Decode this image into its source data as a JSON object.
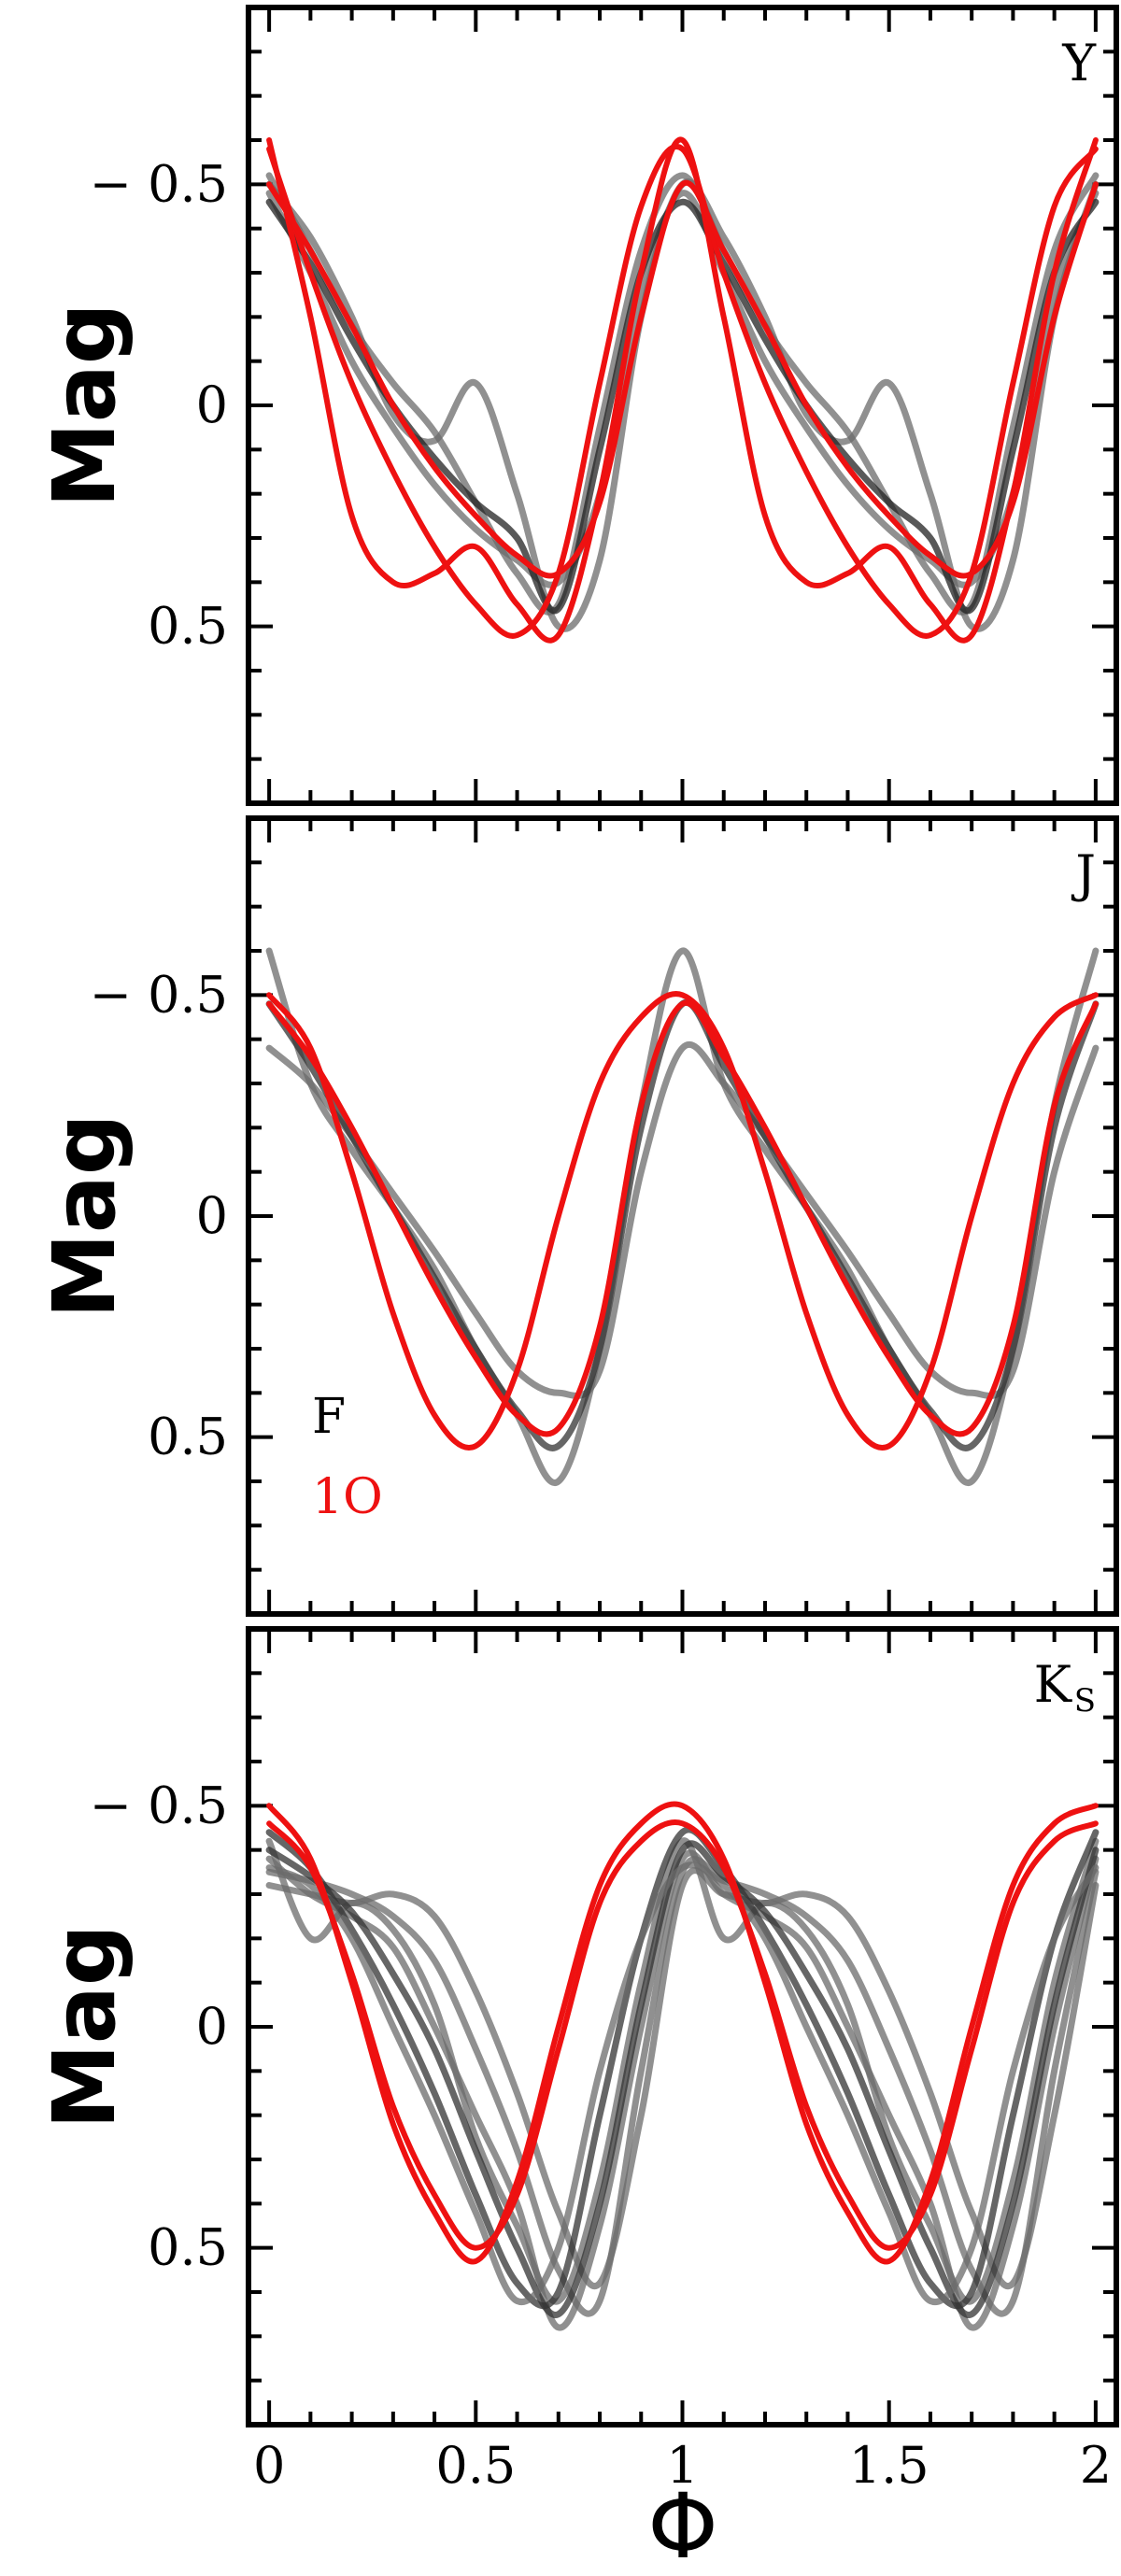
{
  "chart_data": [
    {
      "type": "line",
      "band_label": "Y",
      "ylabel": "Mag",
      "xlabel": "",
      "xlim": [
        -0.05,
        2.05
      ],
      "ylim": [
        0.9,
        -0.9
      ],
      "y_inverted": true,
      "yticks": [
        -0.5,
        0,
        0.5
      ],
      "ytick_labels": [
        "− 0.5",
        "0",
        "0.5"
      ],
      "xtick_labels": [],
      "grid": false,
      "series": [
        {
          "color": "#6b6b6b",
          "x": [
            0,
            0.1,
            0.2,
            0.3,
            0.4,
            0.5,
            0.6,
            0.7,
            0.8,
            0.9,
            1.0
          ],
          "y": [
            -0.52,
            -0.35,
            -0.18,
            -0.05,
            0.06,
            0.22,
            0.38,
            0.45,
            0.05,
            -0.35,
            -0.52
          ]
        },
        {
          "color": "#6b6b6b",
          "x": [
            0,
            0.1,
            0.2,
            0.3,
            0.4,
            0.5,
            0.6,
            0.7,
            0.8,
            0.9,
            1.0
          ],
          "y": [
            -0.5,
            -0.38,
            -0.2,
            0.02,
            0.08,
            -0.05,
            0.2,
            0.5,
            0.35,
            -0.2,
            -0.5
          ]
        },
        {
          "color": "#6b6b6b",
          "x": [
            0,
            0.1,
            0.2,
            0.3,
            0.4,
            0.5,
            0.6,
            0.7,
            0.8,
            0.9,
            1.0
          ],
          "y": [
            -0.48,
            -0.3,
            -0.1,
            0.05,
            0.18,
            0.28,
            0.35,
            0.4,
            0.2,
            -0.25,
            -0.48
          ]
        },
        {
          "color": "#222222",
          "x": [
            0,
            0.1,
            0.2,
            0.3,
            0.4,
            0.5,
            0.6,
            0.7,
            0.8,
            0.9,
            1.0
          ],
          "y": [
            -0.46,
            -0.32,
            -0.15,
            0.0,
            0.12,
            0.22,
            0.3,
            0.46,
            0.1,
            -0.3,
            -0.46
          ]
        },
        {
          "color": "#ee1111",
          "x": [
            0,
            0.1,
            0.2,
            0.3,
            0.4,
            0.5,
            0.6,
            0.7,
            0.8,
            0.9,
            1.0
          ],
          "y": [
            -0.6,
            -0.2,
            0.25,
            0.4,
            0.38,
            0.32,
            0.45,
            0.52,
            0.2,
            -0.3,
            -0.6
          ]
        },
        {
          "color": "#ee1111",
          "x": [
            0,
            0.1,
            0.2,
            0.3,
            0.4,
            0.5,
            0.6,
            0.7,
            0.8,
            0.9,
            1.0
          ],
          "y": [
            -0.58,
            -0.3,
            -0.05,
            0.15,
            0.32,
            0.45,
            0.52,
            0.38,
            -0.05,
            -0.45,
            -0.58
          ]
        },
        {
          "color": "#ee1111",
          "x": [
            0,
            0.1,
            0.2,
            0.3,
            0.4,
            0.5,
            0.6,
            0.7,
            0.8,
            0.9,
            1.0
          ],
          "y": [
            -0.5,
            -0.35,
            -0.18,
            0.0,
            0.14,
            0.25,
            0.34,
            0.38,
            0.22,
            -0.2,
            -0.5
          ]
        }
      ]
    },
    {
      "type": "line",
      "band_label": "J",
      "ylabel": "Mag",
      "xlabel": "",
      "xlim": [
        -0.05,
        2.05
      ],
      "ylim": [
        0.9,
        -0.9
      ],
      "y_inverted": true,
      "yticks": [
        -0.5,
        0,
        0.5
      ],
      "ytick_labels": [
        "− 0.5",
        "0",
        "0.5"
      ],
      "xtick_labels": [],
      "grid": false,
      "legend": [
        {
          "label": "F",
          "color": "#000000"
        },
        {
          "label": "1O",
          "color": "#ee1111"
        }
      ],
      "legend_position": "lower-left",
      "series": [
        {
          "color": "#6b6b6b",
          "x": [
            0,
            0.1,
            0.2,
            0.3,
            0.4,
            0.5,
            0.6,
            0.7,
            0.8,
            0.9,
            1.0
          ],
          "y": [
            -0.6,
            -0.3,
            -0.15,
            -0.02,
            0.12,
            0.3,
            0.45,
            0.6,
            0.3,
            -0.25,
            -0.6
          ]
        },
        {
          "color": "#6b6b6b",
          "x": [
            0,
            0.1,
            0.2,
            0.3,
            0.4,
            0.5,
            0.6,
            0.7,
            0.8,
            0.9,
            1.0
          ],
          "y": [
            -0.38,
            -0.3,
            -0.18,
            -0.05,
            0.08,
            0.22,
            0.35,
            0.4,
            0.35,
            -0.1,
            -0.38
          ]
        },
        {
          "color": "#333333",
          "x": [
            0,
            0.1,
            0.2,
            0.3,
            0.4,
            0.5,
            0.6,
            0.7,
            0.8,
            0.9,
            1.0
          ],
          "y": [
            -0.48,
            -0.34,
            -0.18,
            -0.02,
            0.14,
            0.3,
            0.44,
            0.52,
            0.3,
            -0.2,
            -0.48
          ]
        },
        {
          "color": "#ee1111",
          "x": [
            0,
            0.1,
            0.2,
            0.3,
            0.4,
            0.5,
            0.6,
            0.7,
            0.8,
            0.9,
            1.0
          ],
          "y": [
            -0.5,
            -0.38,
            -0.1,
            0.22,
            0.45,
            0.52,
            0.35,
            0.0,
            -0.3,
            -0.45,
            -0.5
          ]
        },
        {
          "color": "#ee1111",
          "x": [
            0,
            0.1,
            0.2,
            0.3,
            0.4,
            0.5,
            0.6,
            0.7,
            0.8,
            0.9,
            1.0
          ],
          "y": [
            -0.48,
            -0.36,
            -0.2,
            -0.02,
            0.16,
            0.32,
            0.45,
            0.48,
            0.25,
            -0.25,
            -0.48
          ]
        }
      ]
    },
    {
      "type": "line",
      "band_label": "K",
      "band_label_sub": "S",
      "ylabel": "Mag",
      "xlabel": "Φ",
      "xlim": [
        -0.05,
        2.05
      ],
      "ylim": [
        0.9,
        -0.9
      ],
      "y_inverted": true,
      "yticks": [
        -0.5,
        0,
        0.5
      ],
      "ytick_labels": [
        "− 0.5",
        "0",
        "0.5"
      ],
      "xticks": [
        0,
        0.5,
        1,
        1.5,
        2
      ],
      "xtick_labels": [
        "0",
        "0.5",
        "1",
        "1.5",
        "2"
      ],
      "grid": false,
      "series": [
        {
          "color": "#6b6b6b",
          "x": [
            0,
            0.1,
            0.2,
            0.3,
            0.4,
            0.5,
            0.6,
            0.7,
            0.8,
            0.9,
            1.0
          ],
          "y": [
            -0.42,
            -0.2,
            -0.28,
            -0.22,
            -0.05,
            0.25,
            0.45,
            0.62,
            0.35,
            -0.1,
            -0.42
          ]
        },
        {
          "color": "#6b6b6b",
          "x": [
            0,
            0.1,
            0.2,
            0.3,
            0.4,
            0.5,
            0.6,
            0.7,
            0.8,
            0.9,
            1.0
          ],
          "y": [
            -0.38,
            -0.3,
            -0.25,
            -0.18,
            0.0,
            0.2,
            0.4,
            0.68,
            0.45,
            0.0,
            -0.38
          ]
        },
        {
          "color": "#6b6b6b",
          "x": [
            0,
            0.1,
            0.2,
            0.3,
            0.4,
            0.5,
            0.6,
            0.7,
            0.8,
            0.9,
            1.0
          ],
          "y": [
            -0.35,
            -0.33,
            -0.3,
            -0.25,
            -0.15,
            0.05,
            0.28,
            0.55,
            0.62,
            0.1,
            -0.35
          ]
        },
        {
          "color": "#6b6b6b",
          "x": [
            0,
            0.1,
            0.2,
            0.3,
            0.4,
            0.5,
            0.6,
            0.7,
            0.8,
            0.9,
            1.0
          ],
          "y": [
            -0.32,
            -0.3,
            -0.28,
            -0.3,
            -0.25,
            -0.08,
            0.15,
            0.42,
            0.58,
            0.2,
            -0.32
          ]
        },
        {
          "color": "#333333",
          "x": [
            0,
            0.1,
            0.2,
            0.3,
            0.4,
            0.5,
            0.6,
            0.7,
            0.8,
            0.9,
            1.0
          ],
          "y": [
            -0.4,
            -0.34,
            -0.26,
            -0.12,
            0.05,
            0.28,
            0.5,
            0.65,
            0.4,
            -0.05,
            -0.4
          ]
        },
        {
          "color": "#333333",
          "x": [
            0,
            0.1,
            0.2,
            0.3,
            0.4,
            0.5,
            0.6,
            0.7,
            0.8,
            0.9,
            1.0
          ],
          "y": [
            -0.44,
            -0.36,
            -0.22,
            -0.05,
            0.15,
            0.38,
            0.58,
            0.6,
            0.2,
            -0.2,
            -0.44
          ]
        },
        {
          "color": "#6b6b6b",
          "x": [
            0,
            0.1,
            0.2,
            0.3,
            0.4,
            0.5,
            0.6,
            0.7,
            0.8,
            0.9,
            1.0
          ],
          "y": [
            -0.36,
            -0.32,
            -0.2,
            0.0,
            0.2,
            0.42,
            0.62,
            0.5,
            0.1,
            -0.2,
            -0.36
          ]
        },
        {
          "color": "#ee1111",
          "x": [
            0,
            0.1,
            0.2,
            0.3,
            0.4,
            0.5,
            0.6,
            0.7,
            0.8,
            0.9,
            1.0
          ],
          "y": [
            -0.5,
            -0.38,
            -0.1,
            0.22,
            0.42,
            0.53,
            0.35,
            0.0,
            -0.32,
            -0.46,
            -0.5
          ]
        },
        {
          "color": "#ee1111",
          "x": [
            0,
            0.1,
            0.2,
            0.3,
            0.4,
            0.5,
            0.6,
            0.7,
            0.8,
            0.9,
            1.0
          ],
          "y": [
            -0.46,
            -0.36,
            -0.12,
            0.18,
            0.38,
            0.5,
            0.38,
            0.05,
            -0.28,
            -0.42,
            -0.46
          ]
        }
      ]
    }
  ]
}
